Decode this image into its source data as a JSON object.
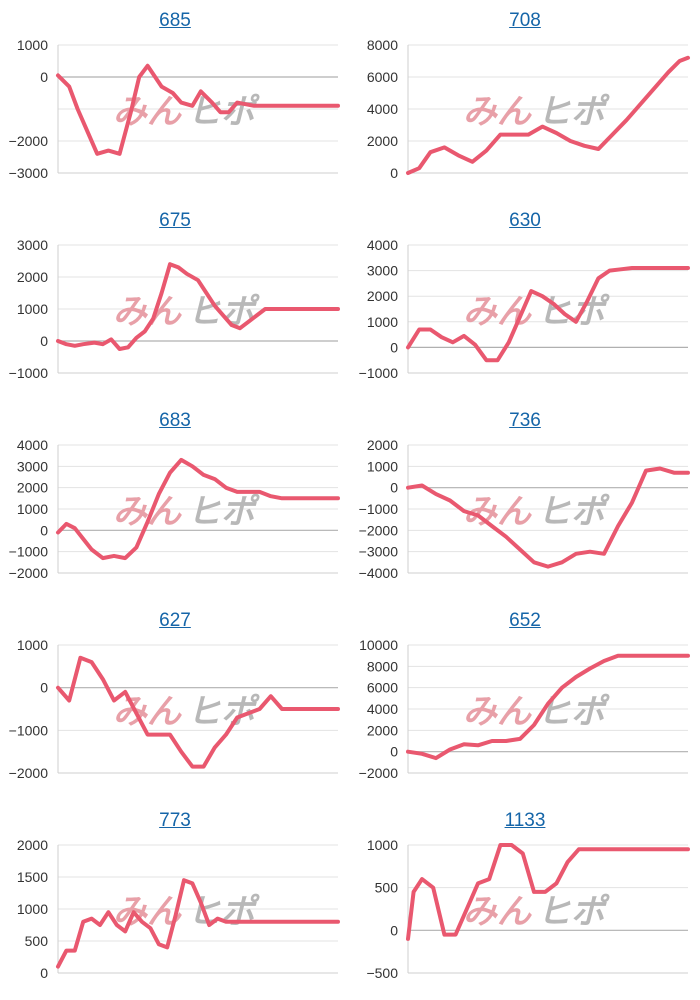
{
  "chart_data": [
    {
      "type": "line",
      "title": "685",
      "ylim": [
        -3000,
        1000
      ],
      "yticks": [
        1000,
        0,
        -2000,
        -3000
      ],
      "ytick_labels": [
        "1000",
        "0",
        "−2000",
        "−3000"
      ],
      "zero_line": true,
      "series": [
        {
          "color": "#e9586f",
          "x": [
            0,
            4,
            7,
            10,
            14,
            18,
            22,
            26,
            29,
            32,
            37,
            41,
            44,
            48,
            51,
            55,
            58,
            61,
            64,
            67,
            70,
            73,
            76,
            79,
            82,
            85,
            89,
            92,
            95,
            98,
            100
          ],
          "values": [
            50,
            -300,
            -1000,
            -1600,
            -2400,
            -2300,
            -2400,
            -1100,
            0,
            350,
            -300,
            -500,
            -800,
            -900,
            -450,
            -800,
            -1100,
            -1100,
            -800,
            -850,
            -900,
            -900,
            -900,
            -900,
            -900,
            -900,
            -900,
            -900,
            -900,
            -900,
            -900
          ]
        }
      ]
    },
    {
      "type": "line",
      "title": "708",
      "ylim": [
        0,
        8000
      ],
      "yticks": [
        8000,
        6000,
        4000,
        2000,
        0
      ],
      "ytick_labels": [
        "8000",
        "6000",
        "4000",
        "2000",
        "0"
      ],
      "zero_line": false,
      "series": [
        {
          "color": "#e9586f",
          "x": [
            0,
            4,
            8,
            13,
            18,
            23,
            28,
            33,
            38,
            43,
            48,
            53,
            58,
            63,
            68,
            73,
            78,
            83,
            88,
            93,
            97,
            100
          ],
          "values": [
            0,
            300,
            1300,
            1600,
            1100,
            700,
            1400,
            2400,
            2400,
            2400,
            2900,
            2500,
            2000,
            1700,
            1500,
            2400,
            3300,
            4300,
            5300,
            6300,
            7000,
            7200
          ]
        }
      ]
    },
    {
      "type": "line",
      "title": "675",
      "ylim": [
        -1000,
        3000
      ],
      "yticks": [
        3000,
        2000,
        1000,
        0,
        -1000
      ],
      "ytick_labels": [
        "3000",
        "2000",
        "1000",
        "0",
        "−1000"
      ],
      "zero_line": true,
      "series": [
        {
          "color": "#e9586f",
          "x": [
            0,
            3,
            6,
            9,
            13,
            16,
            19,
            22,
            25,
            28,
            31,
            34,
            37,
            40,
            43,
            46,
            50,
            53,
            56,
            59,
            62,
            65,
            68,
            71,
            74,
            77,
            80,
            83,
            86,
            90,
            93,
            96,
            100
          ],
          "values": [
            0,
            -100,
            -150,
            -100,
            -50,
            -100,
            50,
            -250,
            -200,
            100,
            300,
            700,
            1500,
            2400,
            2300,
            2100,
            1900,
            1500,
            1100,
            800,
            500,
            400,
            600,
            800,
            1000,
            1000,
            1000,
            1000,
            1000,
            1000,
            1000,
            1000,
            1000
          ]
        }
      ]
    },
    {
      "type": "line",
      "title": "630",
      "ylim": [
        -1000,
        4000
      ],
      "yticks": [
        4000,
        3000,
        2000,
        1000,
        0,
        -1000
      ],
      "ytick_labels": [
        "4000",
        "3000",
        "2000",
        "1000",
        "0",
        "−1000"
      ],
      "zero_line": true,
      "series": [
        {
          "color": "#e9586f",
          "x": [
            0,
            4,
            8,
            12,
            16,
            20,
            24,
            28,
            32,
            36,
            40,
            44,
            48,
            52,
            56,
            60,
            64,
            68,
            72,
            76,
            80,
            84,
            88,
            92,
            96,
            100
          ],
          "values": [
            0,
            700,
            700,
            400,
            200,
            450,
            100,
            -500,
            -500,
            200,
            1200,
            2200,
            2000,
            1700,
            1300,
            1000,
            1800,
            2700,
            3000,
            3050,
            3100,
            3100,
            3100,
            3100,
            3100,
            3100
          ]
        }
      ]
    },
    {
      "type": "line",
      "title": "683",
      "ylim": [
        -2000,
        4000
      ],
      "yticks": [
        4000,
        3000,
        2000,
        1000,
        0,
        -1000,
        -2000
      ],
      "ytick_labels": [
        "4000",
        "3000",
        "2000",
        "1000",
        "0",
        "−1000",
        "−2000"
      ],
      "zero_line": true,
      "series": [
        {
          "color": "#e9586f",
          "x": [
            0,
            3,
            6,
            9,
            12,
            16,
            20,
            24,
            28,
            32,
            36,
            40,
            44,
            48,
            52,
            56,
            60,
            64,
            68,
            72,
            76,
            80,
            84,
            88,
            92,
            96,
            100
          ],
          "values": [
            -100,
            300,
            100,
            -400,
            -900,
            -1300,
            -1200,
            -1300,
            -800,
            400,
            1700,
            2700,
            3300,
            3000,
            2600,
            2400,
            2000,
            1800,
            1800,
            1800,
            1600,
            1500,
            1500,
            1500,
            1500,
            1500,
            1500
          ]
        }
      ]
    },
    {
      "type": "line",
      "title": "736",
      "ylim": [
        -4000,
        2000
      ],
      "yticks": [
        2000,
        1000,
        0,
        -1000,
        -2000,
        -3000,
        -4000
      ],
      "ytick_labels": [
        "2000",
        "1000",
        "0",
        "−1000",
        "−2000",
        "−3000",
        "−4000"
      ],
      "zero_line": true,
      "series": [
        {
          "color": "#e9586f",
          "x": [
            0,
            5,
            10,
            15,
            20,
            25,
            30,
            35,
            40,
            45,
            50,
            55,
            60,
            65,
            70,
            75,
            80,
            85,
            90,
            95,
            100
          ],
          "values": [
            0,
            100,
            -300,
            -600,
            -1100,
            -1300,
            -1800,
            -2300,
            -2900,
            -3500,
            -3700,
            -3500,
            -3100,
            -3000,
            -3100,
            -1800,
            -700,
            800,
            900,
            700,
            700
          ]
        }
      ]
    },
    {
      "type": "line",
      "title": "627",
      "ylim": [
        -2000,
        1000
      ],
      "yticks": [
        1000,
        0,
        -1000,
        -2000
      ],
      "ytick_labels": [
        "1000",
        "0",
        "−1000",
        "−2000"
      ],
      "zero_line": true,
      "series": [
        {
          "color": "#e9586f",
          "x": [
            0,
            4,
            8,
            12,
            16,
            20,
            24,
            28,
            32,
            36,
            40,
            44,
            48,
            52,
            56,
            60,
            64,
            68,
            72,
            76,
            80,
            84,
            88,
            92,
            96,
            100
          ],
          "values": [
            0,
            -300,
            700,
            600,
            200,
            -300,
            -100,
            -600,
            -1100,
            -1100,
            -1100,
            -1500,
            -1850,
            -1850,
            -1400,
            -1100,
            -700,
            -600,
            -500,
            -200,
            -500,
            -500,
            -500,
            -500,
            -500,
            -500
          ]
        }
      ]
    },
    {
      "type": "line",
      "title": "652",
      "ylim": [
        -2000,
        10000
      ],
      "yticks": [
        10000,
        8000,
        6000,
        4000,
        2000,
        0,
        -2000
      ],
      "ytick_labels": [
        "10000",
        "8000",
        "6000",
        "4000",
        "2000",
        "0",
        "−2000"
      ],
      "zero_line": true,
      "series": [
        {
          "color": "#e9586f",
          "x": [
            0,
            5,
            10,
            15,
            20,
            25,
            30,
            35,
            40,
            45,
            50,
            55,
            60,
            65,
            70,
            75,
            80,
            85,
            90,
            95,
            100
          ],
          "values": [
            0,
            -200,
            -600,
            200,
            700,
            600,
            1000,
            1000,
            1200,
            2500,
            4500,
            6000,
            7000,
            7800,
            8500,
            9000,
            9000,
            9000,
            9000,
            9000,
            9000
          ]
        }
      ]
    },
    {
      "type": "line",
      "title": "773",
      "ylim": [
        0,
        2000
      ],
      "yticks": [
        2000,
        1500,
        1000,
        500,
        0
      ],
      "ytick_labels": [
        "2000",
        "1500",
        "1000",
        "500",
        "0"
      ],
      "zero_line": false,
      "series": [
        {
          "color": "#e9586f",
          "x": [
            0,
            3,
            6,
            9,
            12,
            15,
            18,
            21,
            24,
            27,
            30,
            33,
            36,
            39,
            42,
            45,
            48,
            51,
            54,
            57,
            60,
            63,
            66,
            69,
            72,
            75,
            78,
            81,
            84,
            87,
            90,
            95,
            100
          ],
          "values": [
            100,
            350,
            350,
            800,
            850,
            750,
            950,
            750,
            650,
            950,
            800,
            700,
            450,
            400,
            900,
            1450,
            1400,
            1100,
            750,
            850,
            800,
            800,
            800,
            800,
            800,
            800,
            800,
            800,
            800,
            800,
            800,
            800,
            800
          ]
        }
      ]
    },
    {
      "type": "line",
      "title": "1133",
      "ylim": [
        -500,
        1000
      ],
      "yticks": [
        1000,
        500,
        0,
        -500
      ],
      "ytick_labels": [
        "1000",
        "500",
        "0",
        "−500"
      ],
      "zero_line": true,
      "series": [
        {
          "color": "#e9586f",
          "x": [
            0,
            2,
            5,
            9,
            13,
            17,
            21,
            25,
            29,
            33,
            37,
            41,
            45,
            49,
            53,
            57,
            61,
            65,
            69,
            73,
            77,
            81,
            85,
            89,
            93,
            97,
            100
          ],
          "values": [
            -100,
            450,
            600,
            500,
            -50,
            -50,
            250,
            550,
            600,
            1000,
            1000,
            900,
            450,
            450,
            550,
            800,
            950,
            950,
            950,
            950,
            950,
            950,
            950,
            950,
            950,
            950,
            950
          ]
        }
      ]
    }
  ],
  "watermark": {
    "part1": "みん",
    "part2": "ヒポ",
    "color1": "#e8a0a8",
    "color2": "#b8b8b8"
  },
  "colors": {
    "title_link": "#1565a8",
    "grid": "#e3e3e3",
    "zero_line": "#b0b0b0",
    "axis_text": "#333333"
  }
}
